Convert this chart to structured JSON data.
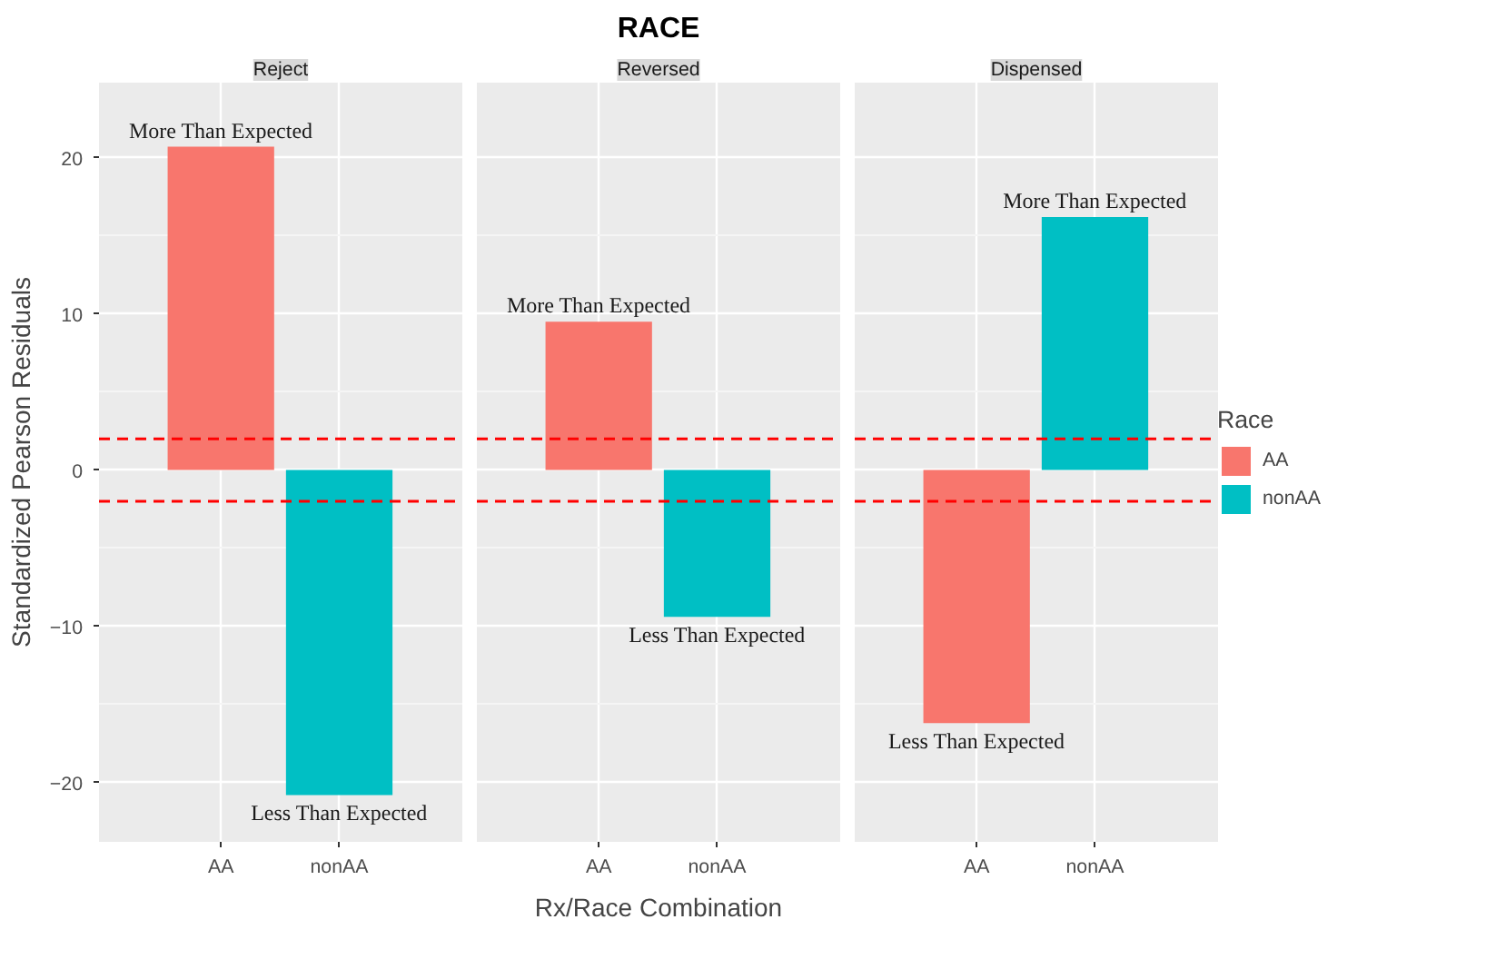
{
  "chart_data": [
    {
      "type": "bar",
      "subtitle": "Reject",
      "ylabel": "Standardized Pearson Residuals",
      "categories": [
        "AA",
        "nonAA"
      ],
      "series": [
        {
          "color": "#f8766d",
          "values": [
            20.7,
            null
          ]
        },
        {
          "color": "#00bfc4",
          "values": [
            null,
            -20.8
          ]
        }
      ],
      "ylim": [
        -23.8,
        24.8
      ],
      "yticks": [
        -20,
        -10,
        0,
        10,
        20
      ],
      "grid": true,
      "ref_lines": [
        {
          "axis": "y",
          "value": 2,
          "color": "#ff0000",
          "line_style": "dashed"
        },
        {
          "axis": "y",
          "value": -2,
          "color": "#ff0000",
          "line_style": "dashed"
        }
      ],
      "annotations": [
        {
          "text": "More Than Expected",
          "x": "AA",
          "y": 20.7
        },
        {
          "text": "Less Than Expected",
          "x": "nonAA",
          "y": -20.8
        }
      ]
    },
    {
      "type": "bar",
      "title": "RACE",
      "subtitle": "Reversed",
      "xlabel": "Rx/Race Combination",
      "categories": [
        "AA",
        "nonAA"
      ],
      "series": [
        {
          "color": "#f8766d",
          "values": [
            9.5,
            null
          ]
        },
        {
          "color": "#00bfc4",
          "values": [
            null,
            -9.4
          ]
        }
      ],
      "ylim": [
        -23.8,
        24.8
      ],
      "yticks": [
        -20,
        -10,
        0,
        10,
        20
      ],
      "grid": true,
      "tick_labels": "x",
      "ref_lines": [
        {
          "axis": "y",
          "value": 2,
          "color": "#ff0000",
          "line_style": "dashed"
        },
        {
          "axis": "y",
          "value": -2,
          "color": "#ff0000",
          "line_style": "dashed"
        }
      ],
      "annotations": [
        {
          "text": "More Than Expected",
          "x": "AA",
          "y": 9.5
        },
        {
          "text": "Less Than Expected",
          "x": "nonAA",
          "y": -9.4
        }
      ]
    },
    {
      "type": "bar",
      "subtitle": "Dispensed",
      "categories": [
        "AA",
        "nonAA"
      ],
      "series": [
        {
          "name": "AA",
          "color": "#f8766d",
          "values": [
            -16.2,
            null
          ]
        },
        {
          "name": "nonAA",
          "color": "#00bfc4",
          "values": [
            null,
            16.2
          ]
        }
      ],
      "ylim": [
        -23.8,
        24.8
      ],
      "yticks": [
        -20,
        -10,
        0,
        10,
        20
      ],
      "grid": true,
      "tick_labels": "x",
      "legend": "right",
      "legend_title": "Race",
      "ref_lines": [
        {
          "axis": "y",
          "value": 2,
          "color": "#ff0000",
          "line_style": "dashed"
        },
        {
          "axis": "y",
          "value": -2,
          "color": "#ff0000",
          "line_style": "dashed"
        }
      ],
      "annotations": [
        {
          "text": "Less Than Expected",
          "x": "AA",
          "y": -16.2
        },
        {
          "text": "More Than Expected",
          "x": "nonAA",
          "y": 16.2
        }
      ]
    }
  ]
}
